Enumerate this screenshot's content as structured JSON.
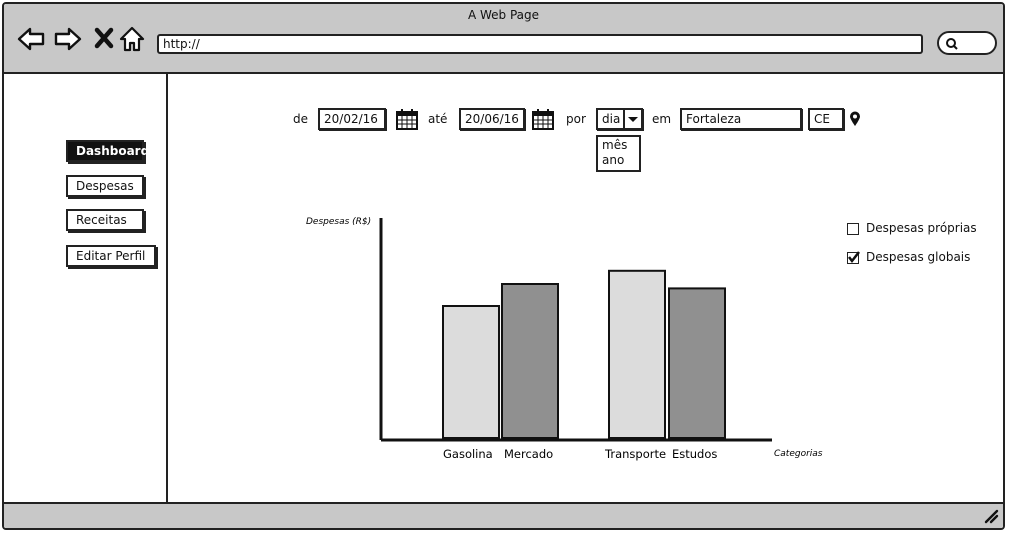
{
  "window": {
    "title": "A Web Page",
    "url": "http://"
  },
  "sidebar": {
    "items": [
      {
        "label": "Dashboard",
        "active": true
      },
      {
        "label": "Despesas"
      },
      {
        "label": "Receitas"
      },
      {
        "label": "Editar Perfil"
      }
    ]
  },
  "filters": {
    "from_label": "de",
    "from_date": "20/02/16",
    "to_label": "até",
    "to_date": "20/06/16",
    "by_label": "por",
    "period_value": "dia",
    "period_options": [
      "mês",
      "ano"
    ],
    "in_label": "em",
    "city": "Fortaleza",
    "state": "CE"
  },
  "legend": {
    "own": {
      "label": "Despesas próprias",
      "checked": false
    },
    "global": {
      "label": "Despesas globais",
      "checked": true
    }
  },
  "colors": {
    "light_bar": "#dcdcdc",
    "dark_bar": "#909090"
  },
  "chart_data": {
    "type": "bar",
    "ylabel": "Despesas (R$)",
    "xlabel": "Categorias",
    "categories": [
      "Gasolina",
      "Mercado",
      "Transporte",
      "Estudos"
    ],
    "values": [
      60,
      70,
      76,
      68
    ],
    "ylim": [
      0,
      100
    ]
  }
}
